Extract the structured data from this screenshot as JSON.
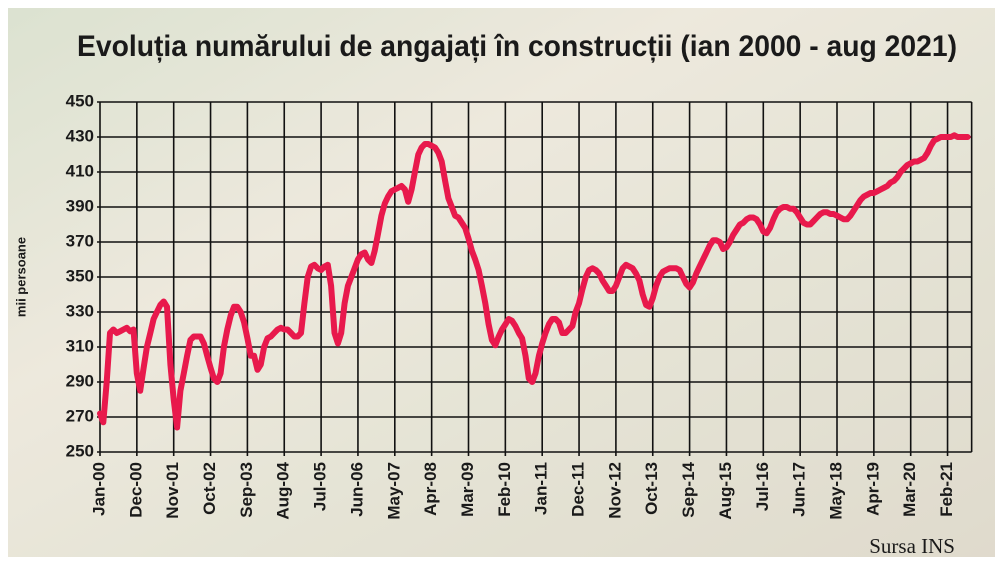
{
  "chart_data": {
    "type": "line",
    "title": "Evoluția numărului de angajați în construcții (ian 2000 - aug 2021)",
    "ylabel": "mii persoane",
    "source": "Sursa INS",
    "color": "#e8194c",
    "grid": true,
    "ylim": [
      250,
      450
    ],
    "yticks": [
      250,
      270,
      290,
      310,
      330,
      350,
      370,
      390,
      410,
      430,
      450
    ],
    "categories": [
      "Jan-00",
      null,
      null,
      null,
      null,
      null,
      null,
      null,
      null,
      null,
      null,
      "Dec-00",
      null,
      null,
      null,
      null,
      null,
      null,
      null,
      null,
      null,
      null,
      "Nov-01",
      null,
      null,
      null,
      null,
      null,
      null,
      null,
      null,
      null,
      null,
      "Oct-02",
      null,
      null,
      null,
      null,
      null,
      null,
      null,
      null,
      null,
      null,
      "Sep-03",
      null,
      null,
      null,
      null,
      null,
      null,
      null,
      null,
      null,
      null,
      "Aug-04",
      null,
      null,
      null,
      null,
      null,
      null,
      null,
      null,
      null,
      null,
      "Jul-05",
      null,
      null,
      null,
      null,
      null,
      null,
      null,
      null,
      null,
      null,
      "Jun-06",
      null,
      null,
      null,
      null,
      null,
      null,
      null,
      null,
      null,
      null,
      "May-07",
      null,
      null,
      null,
      null,
      null,
      null,
      null,
      null,
      null,
      null,
      "Apr-08",
      null,
      null,
      null,
      null,
      null,
      null,
      null,
      null,
      null,
      null,
      "Mar-09",
      null,
      null,
      null,
      null,
      null,
      null,
      null,
      null,
      null,
      null,
      "Feb-10",
      null,
      null,
      null,
      null,
      null,
      null,
      null,
      null,
      null,
      null,
      "Jan-11",
      null,
      null,
      null,
      null,
      null,
      null,
      null,
      null,
      null,
      null,
      "Dec-11",
      null,
      null,
      null,
      null,
      null,
      null,
      null,
      null,
      null,
      null,
      "Nov-12",
      null,
      null,
      null,
      null,
      null,
      null,
      null,
      null,
      null,
      null,
      "Oct-13",
      null,
      null,
      null,
      null,
      null,
      null,
      null,
      null,
      null,
      null,
      "Sep-14",
      null,
      null,
      null,
      null,
      null,
      null,
      null,
      null,
      null,
      null,
      "Aug-15",
      null,
      null,
      null,
      null,
      null,
      null,
      null,
      null,
      null,
      null,
      "Jul-16",
      null,
      null,
      null,
      null,
      null,
      null,
      null,
      null,
      null,
      null,
      "Jun-17",
      null,
      null,
      null,
      null,
      null,
      null,
      null,
      null,
      null,
      null,
      "May-18",
      null,
      null,
      null,
      null,
      null,
      null,
      null,
      null,
      null,
      null,
      "Apr-19",
      null,
      null,
      null,
      null,
      null,
      null,
      null,
      null,
      null,
      null,
      "Mar-20",
      null,
      null,
      null,
      null,
      null,
      null,
      null,
      null,
      null,
      null,
      "Feb-21",
      null,
      null,
      null,
      null,
      null,
      null
    ],
    "values": [
      272,
      267,
      290,
      318,
      320,
      318,
      319,
      320,
      321,
      319,
      320,
      295,
      285,
      298,
      310,
      318,
      326,
      330,
      334,
      336,
      333,
      300,
      280,
      264,
      285,
      295,
      305,
      314,
      316,
      316,
      316,
      312,
      305,
      298,
      292,
      290,
      295,
      310,
      320,
      328,
      333,
      333,
      330,
      324,
      315,
      305,
      305,
      297,
      300,
      310,
      315,
      316,
      318,
      320,
      321,
      320,
      320,
      318,
      316,
      316,
      318,
      335,
      350,
      356,
      357,
      355,
      354,
      356,
      357,
      345,
      318,
      312,
      318,
      335,
      345,
      350,
      355,
      360,
      363,
      364,
      360,
      358,
      365,
      375,
      385,
      392,
      396,
      399,
      400,
      401,
      402,
      400,
      393,
      400,
      410,
      420,
      424,
      426,
      426,
      425,
      424,
      421,
      416,
      405,
      395,
      390,
      385,
      384,
      381,
      378,
      372,
      365,
      360,
      354,
      345,
      335,
      323,
      314,
      311,
      316,
      320,
      323,
      326,
      325,
      322,
      318,
      315,
      305,
      292,
      290,
      295,
      305,
      312,
      318,
      323,
      326,
      326,
      324,
      318,
      318,
      320,
      322,
      330,
      335,
      343,
      350,
      354,
      355,
      354,
      352,
      348,
      345,
      342,
      342,
      345,
      350,
      355,
      357,
      356,
      355,
      352,
      348,
      340,
      334,
      333,
      338,
      345,
      350,
      353,
      354,
      355,
      355,
      355,
      354,
      350,
      346,
      344,
      347,
      352,
      356,
      360,
      364,
      368,
      371,
      371,
      370,
      366,
      367,
      370,
      374,
      377,
      380,
      381,
      383,
      384,
      384,
      383,
      380,
      376,
      375,
      378,
      383,
      387,
      389,
      390,
      390,
      389,
      389,
      387,
      384,
      381,
      380,
      380,
      382,
      384,
      386,
      387,
      387,
      386,
      386,
      385,
      384,
      383,
      383,
      385,
      388,
      391,
      394,
      396,
      397,
      398,
      398,
      399,
      400,
      401,
      402,
      404,
      405,
      407,
      410,
      412,
      414,
      415,
      416,
      416,
      417,
      418,
      421,
      425,
      428,
      429,
      430,
      430,
      430,
      430,
      431,
      430,
      430,
      430,
      430
    ]
  }
}
